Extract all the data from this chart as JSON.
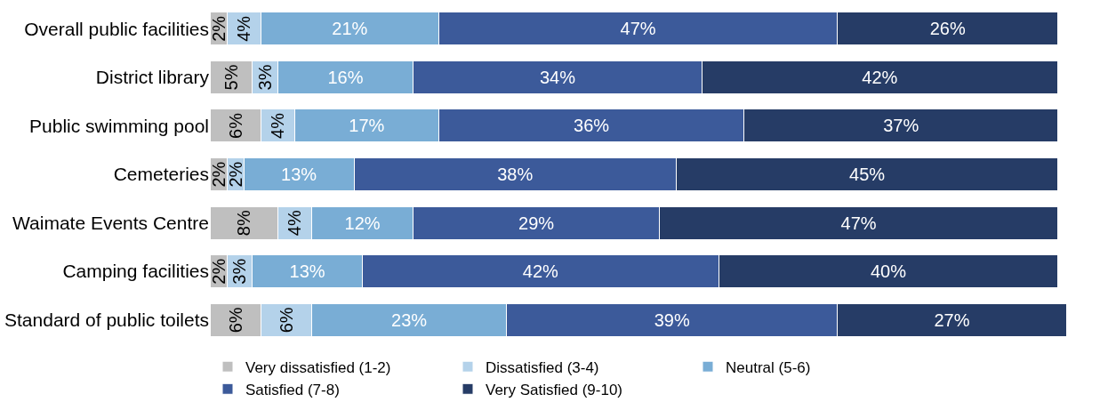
{
  "chart_data": {
    "type": "bar",
    "orientation": "horizontal",
    "stacked": true,
    "legend": "bottom",
    "tick_labels": "y",
    "categories": [
      "Overall public facilities",
      "District library",
      "Public swimming pool",
      "Cemeteries",
      "Waimate Events Centre",
      "Camping facilities",
      "Standard of public toilets"
    ],
    "series": [
      {
        "name": "Very dissatisfied (1-2)",
        "color": "#bfbfbf",
        "values": [
          2,
          5,
          6,
          2,
          8,
          2,
          6
        ],
        "value_labels": [
          "2%",
          "5%",
          "6%",
          "2%",
          "8%",
          "2%",
          "6%"
        ]
      },
      {
        "name": "Dissatisfied (3-4)",
        "color": "#b4d2ea",
        "values": [
          4,
          3,
          4,
          2,
          4,
          3,
          6
        ],
        "value_labels": [
          "4%",
          "3%",
          "4%",
          "2%",
          "4%",
          "3%",
          "6%"
        ]
      },
      {
        "name": "Neutral (5-6)",
        "color": "#79add5",
        "values": [
          21,
          16,
          17,
          13,
          12,
          13,
          23
        ],
        "value_labels": [
          "21%",
          "16%",
          "17%",
          "13%",
          "12%",
          "13%",
          "23%"
        ]
      },
      {
        "name": "Satisfied (7-8)",
        "color": "#3c5a9a",
        "values": [
          47,
          34,
          36,
          38,
          29,
          42,
          39
        ],
        "value_labels": [
          "47%",
          "34%",
          "36%",
          "38%",
          "29%",
          "42%",
          "39%"
        ]
      },
      {
        "name": "Very Satisfied (9-10)",
        "color": "#263c66",
        "values": [
          26,
          42,
          37,
          45,
          47,
          40,
          27
        ],
        "value_labels": [
          "26%",
          "42%",
          "37%",
          "45%",
          "47%",
          "40%",
          "27%"
        ]
      }
    ]
  }
}
